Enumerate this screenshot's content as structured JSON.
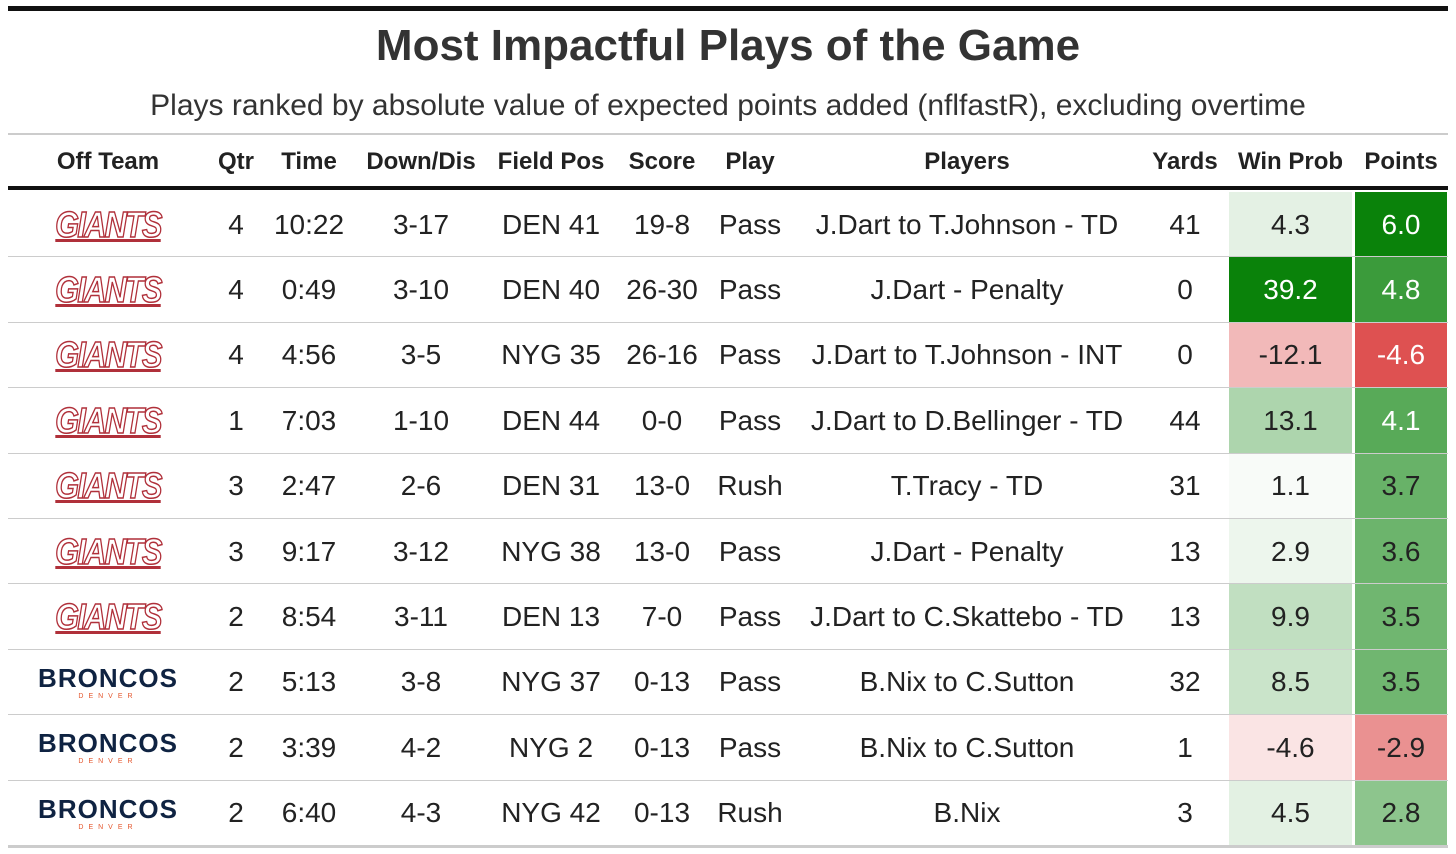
{
  "title": "Most Impactful Plays of the Game",
  "subtitle": "Plays ranked by absolute value of expected points added (nflfastR), excluding overtime",
  "table": {
    "header": [
      "Off Team",
      "Qtr",
      "Time",
      "Down/Dis",
      "Field Pos",
      "Score",
      "Play",
      "Players",
      "Yards",
      "Win Prob",
      "Points"
    ],
    "rows": [
      [
        {
          "logo": "GIANTS"
        },
        "4",
        "10:22",
        "3-17",
        "DEN 41",
        "19-8",
        "Pass",
        "J.Dart to T.Johnson - TD",
        "41",
        "4.3",
        "6.0"
      ],
      [
        {
          "logo": "GIANTS"
        },
        "4",
        "0:49",
        "3-10",
        "DEN 40",
        "26-30",
        "Pass",
        "J.Dart - Penalty",
        "0",
        "39.2",
        "4.8"
      ],
      [
        {
          "logo": "GIANTS"
        },
        "4",
        "4:56",
        "3-5",
        "NYG 35",
        "26-16",
        "Pass",
        "J.Dart to T.Johnson - INT",
        "0",
        "-12.1",
        "-4.6"
      ],
      [
        {
          "logo": "GIANTS"
        },
        "1",
        "7:03",
        "1-10",
        "DEN 44",
        "0-0",
        "Pass",
        "J.Dart to D.Bellinger - TD",
        "44",
        "13.1",
        "4.1"
      ],
      [
        {
          "logo": "GIANTS"
        },
        "3",
        "2:47",
        "2-6",
        "DEN 31",
        "13-0",
        "Rush",
        "T.Tracy - TD",
        "31",
        "1.1",
        "3.7"
      ],
      [
        {
          "logo": "GIANTS"
        },
        "3",
        "9:17",
        "3-12",
        "NYG 38",
        "13-0",
        "Pass",
        "J.Dart - Penalty",
        "13",
        "2.9",
        "3.6"
      ],
      [
        {
          "logo": "GIANTS"
        },
        "2",
        "8:54",
        "3-11",
        "DEN 13",
        "7-0",
        "Pass",
        "J.Dart to C.Skattebo - TD",
        "13",
        "9.9",
        "3.5"
      ],
      [
        {
          "logo": "BRONCOS",
          "sub": "DENVER"
        },
        "2",
        "5:13",
        "3-8",
        "NYG 37",
        "0-13",
        "Pass",
        "B.Nix to C.Sutton",
        "32",
        "8.5",
        "3.5"
      ],
      [
        {
          "logo": "BRONCOS",
          "sub": "DENVER"
        },
        "2",
        "3:39",
        "4-2",
        "NYG 2",
        "0-13",
        "Pass",
        "B.Nix to C.Sutton",
        "1",
        "-4.6",
        "-2.9"
      ],
      [
        {
          "logo": "BRONCOS",
          "sub": "DENVER"
        },
        "2",
        "6:40",
        "4-3",
        "NYG 42",
        "0-13",
        "Rush",
        "B.Nix",
        "3",
        "4.5",
        "2.8"
      ]
    ]
  }
}
